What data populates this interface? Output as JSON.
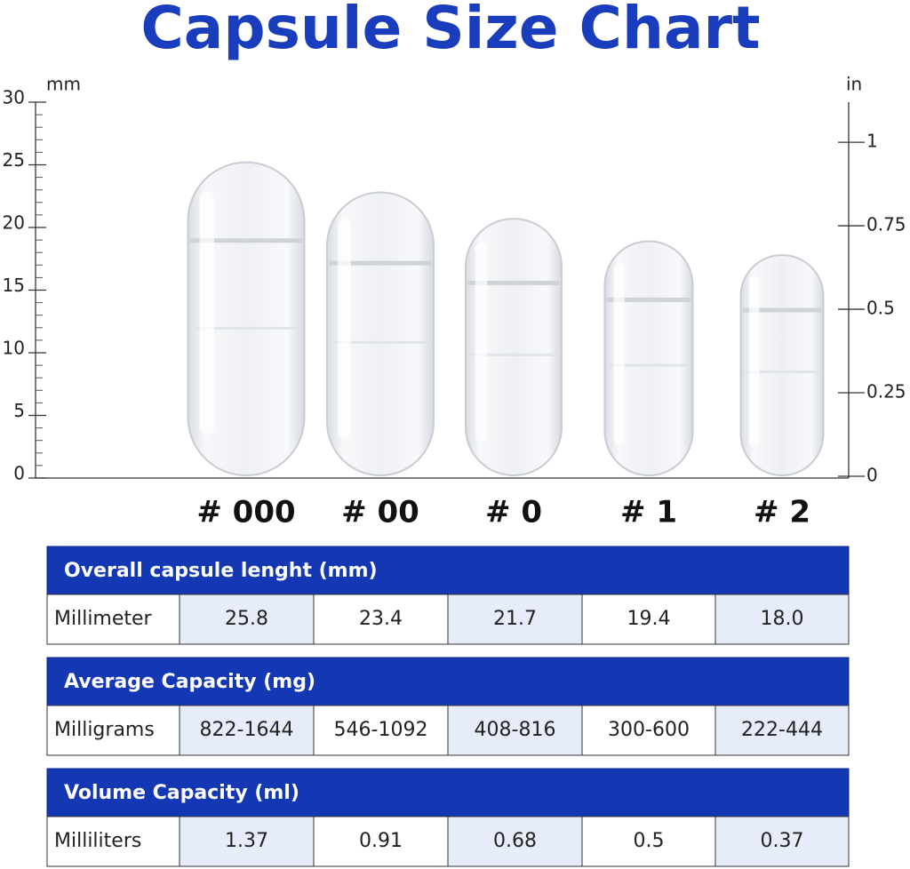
{
  "chart_data": {
    "type": "bar",
    "title": "Capsule Size Chart",
    "y_label": "mm",
    "y2_label": "in",
    "categories": [
      "# 000",
      "# 00",
      "# 0",
      "# 1",
      "# 2"
    ],
    "values": [
      25.2,
      22.8,
      20.7,
      18.9,
      17.8
    ],
    "ylim": [
      0,
      30
    ],
    "yticks": [
      0,
      5,
      10,
      15,
      20,
      25,
      30
    ],
    "y2lim": [
      0,
      1.12
    ],
    "y2ticks": [
      0,
      0.25,
      0.5,
      0.75,
      1
    ]
  },
  "tables": [
    {
      "header": "Overall capsule lenght (mm)",
      "row_label": "Millimeter",
      "cells": [
        "25.8",
        "23.4",
        "21.7",
        "19.4",
        "18.0"
      ]
    },
    {
      "header": "Average Capacity (mg)",
      "row_label": "Milligrams",
      "cells": [
        "822-1644",
        "546-1092",
        "408-816",
        "300-600",
        "222-444"
      ]
    },
    {
      "header": "Volume Capacity (ml)",
      "row_label": "Milliliters",
      "cells": [
        "1.37",
        "0.91",
        "0.68",
        "0.5",
        "0.37"
      ]
    }
  ]
}
